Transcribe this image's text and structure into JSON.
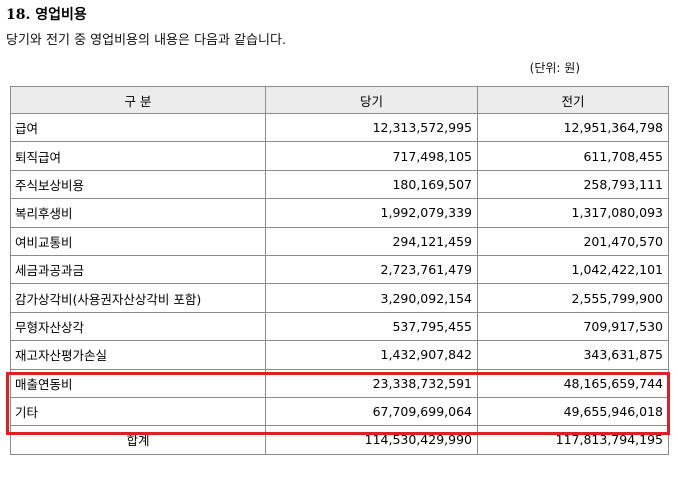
{
  "header": {
    "title": "18. 영업비용",
    "subtitle": "당기와 전기 중 영업비용의 내용은 다음과 같습니다.",
    "unit": "(단위: 원)"
  },
  "table": {
    "columns": [
      "구 분",
      "당기",
      "전기"
    ],
    "rows": [
      {
        "label": "급여",
        "current": "12,313,572,995",
        "prior": "12,951,364,798"
      },
      {
        "label": "퇴직급여",
        "current": "717,498,105",
        "prior": "611,708,455"
      },
      {
        "label": "주식보상비용",
        "current": "180,169,507",
        "prior": "258,793,111"
      },
      {
        "label": "복리후생비",
        "current": "1,992,079,339",
        "prior": "1,317,080,093"
      },
      {
        "label": "여비교통비",
        "current": "294,121,459",
        "prior": "201,470,570"
      },
      {
        "label": "세금과공과금",
        "current": "2,723,761,479",
        "prior": "1,042,422,101"
      },
      {
        "label": "감가상각비(사용권자산상각비 포함)",
        "current": "3,290,092,154",
        "prior": "2,555,799,900"
      },
      {
        "label": "무형자산상각",
        "current": "537,795,455",
        "prior": "709,917,530"
      },
      {
        "label": "재고자산평가손실",
        "current": "1,432,907,842",
        "prior": "343,631,875"
      },
      {
        "label": "매출연동비",
        "current": "23,338,732,591",
        "prior": "48,165,659,744"
      },
      {
        "label": "기타",
        "current": "67,709,699,064",
        "prior": "49,655,946,018"
      }
    ],
    "total": {
      "label": "합계",
      "current": "114,530,429,990",
      "prior": "117,813,794,195"
    }
  },
  "colors": {
    "highlight": "#e02020",
    "header_bg": "#ececec",
    "border": "#8c8c8c"
  }
}
